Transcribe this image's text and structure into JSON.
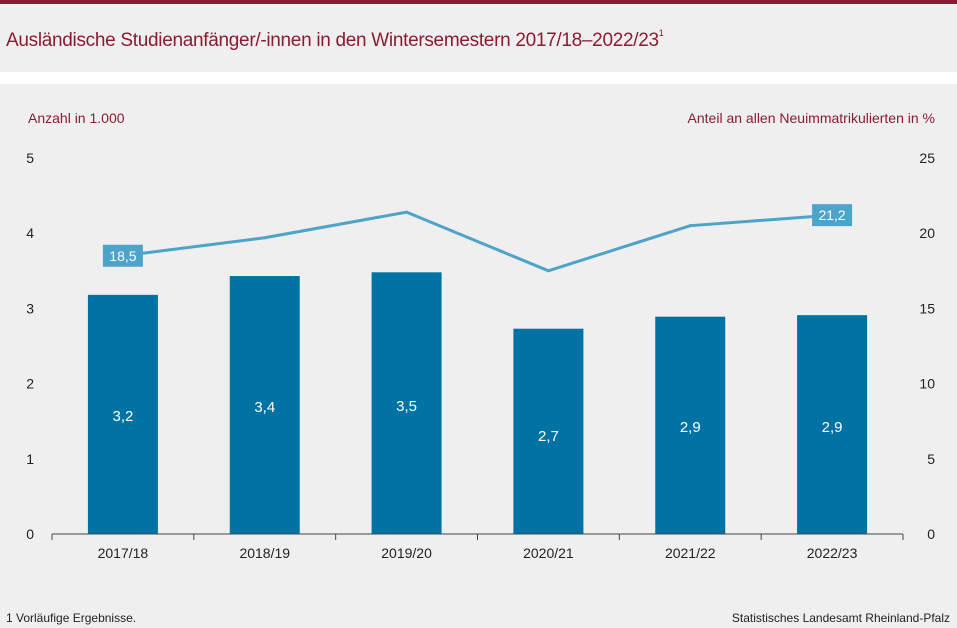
{
  "header": {
    "title": "Ausländische Studienanfänger/-innen in den Wintersemestern 2017/18–2022/23",
    "title_footnote_mark": "1"
  },
  "footer": {
    "note": "1 Vorläufige  Ergebnisse.",
    "source": "Statistisches Landesamt Rheinland-Pfalz"
  },
  "colors": {
    "accent": "#8a1c32",
    "bars": "#0072a3",
    "line": "#4ea3c9",
    "panel": "#efefef"
  },
  "chart_data": {
    "type": "bar+line",
    "title": "Ausländische Studienanfänger/-innen in den Wintersemestern 2017/18–2022/23",
    "categories": [
      "2017/18",
      "2018/19",
      "2019/20",
      "2020/21",
      "2021/22",
      "2022/23"
    ],
    "ylabel_left": "Anzahl  in 1.000",
    "ylabel_right": "Anteil an allen Neuimmatrikulierten  in %",
    "ylim_left": [
      0,
      5
    ],
    "yticks_left": [
      "0",
      "1",
      "2",
      "3",
      "4",
      "5"
    ],
    "ylim_right": [
      0,
      25
    ],
    "yticks_right": [
      "0",
      "5",
      "10",
      "15",
      "20",
      "25"
    ],
    "series": [
      {
        "name": "Anzahl in 1.000",
        "type": "bar",
        "axis": "left",
        "values": [
          3.18,
          3.43,
          3.48,
          2.73,
          2.89,
          2.91
        ],
        "labels": [
          "3,2",
          "3,4",
          "3,5",
          "2,7",
          "2,9",
          "2,9"
        ]
      },
      {
        "name": "Anteil in %",
        "type": "line",
        "axis": "right",
        "values": [
          18.5,
          19.7,
          21.4,
          17.5,
          20.5,
          21.2
        ],
        "labels": [
          "18,5",
          "",
          "",
          "",
          "",
          "21,2"
        ]
      }
    ],
    "grid": false,
    "legend": "none"
  }
}
